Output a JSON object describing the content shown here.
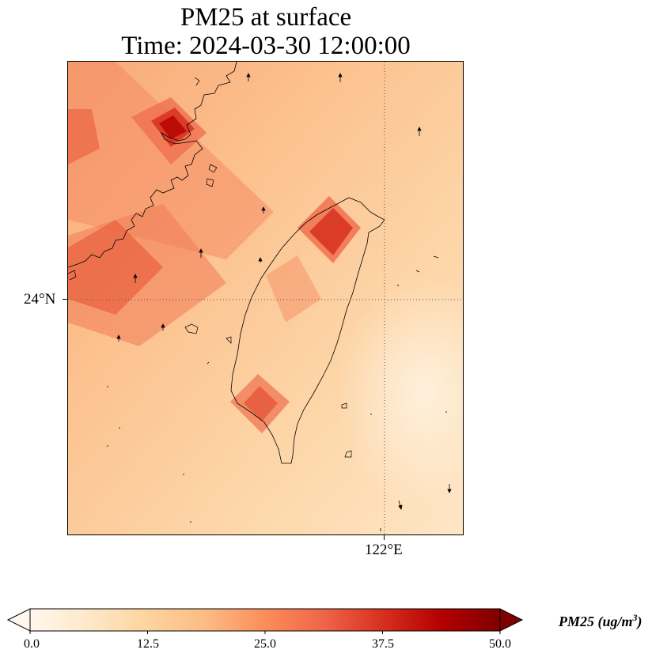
{
  "title": {
    "line1": "PM25 at surface",
    "line2": "Time: 2024-03-30 12:00:00"
  },
  "axes": {
    "lat_tick": "24°N",
    "lon_tick": "122°E"
  },
  "colorbar": {
    "label_text": "PM25 (ug/m",
    "label_sup": "3",
    "label_close": ")",
    "ticks": [
      "0.0",
      "12.5",
      "25.0",
      "37.5",
      "50.0"
    ],
    "colormap": "OrRd",
    "colors": [
      "#fff7ec",
      "#fee8c8",
      "#fdd49e",
      "#fdbb84",
      "#fc8d59",
      "#ef6548",
      "#d7301f",
      "#b30000",
      "#7f0000"
    ],
    "extend": "both"
  },
  "gridlines": {
    "style": "dotted",
    "color": "#555555"
  },
  "coastline_color": "#000000"
}
